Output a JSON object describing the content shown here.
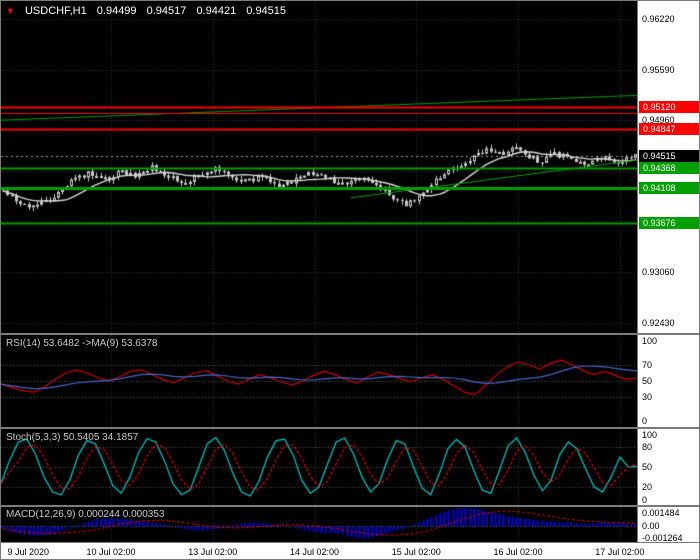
{
  "header": {
    "marker": "▼",
    "symbol": "USDCHF,H1",
    "open": "0.94499",
    "high": "0.94517",
    "low": "0.94421",
    "close": "0.94515"
  },
  "colors": {
    "background": "#000000",
    "grid": "#333333",
    "candle": "#C8C8C8",
    "ma": "#D8D8D8",
    "resistance_red": "#FF0000",
    "support_green": "#00A000",
    "current_tag_bg": "#000000",
    "rsi_line": "#CC0000",
    "rsi_ma": "#4466CC",
    "stoch_main": "#00CCCC",
    "stoch_signal": "#E00000",
    "macd_hist": "#0000EE",
    "macd_signal": "#E00000",
    "axis_bg": "#FFFFFF",
    "axis_text": "#000000",
    "separator": "#7A7A7A"
  },
  "chart_data": [
    {
      "type": "candlestick",
      "name": "USDCHF H1 price",
      "y_axis": {
        "min": 0.923,
        "max": 0.9645,
        "labels": [
          "0.96220",
          "0.95590",
          "0.94960",
          "0.94330",
          "0.93700",
          "0.93060",
          "0.92430"
        ],
        "label_values": [
          0.9622,
          0.9559,
          0.9496,
          0.9433,
          0.937,
          0.9306,
          0.9243
        ]
      },
      "candle_count": 150,
      "ma_period": 13,
      "price_path": [
        [
          0,
          0.9405
        ],
        [
          0.02,
          0.9396
        ],
        [
          0.045,
          0.9388
        ],
        [
          0.07,
          0.9395
        ],
        [
          0.09,
          0.9406
        ],
        [
          0.11,
          0.9422
        ],
        [
          0.135,
          0.943
        ],
        [
          0.16,
          0.9421
        ],
        [
          0.185,
          0.9431
        ],
        [
          0.21,
          0.9425
        ],
        [
          0.235,
          0.9437
        ],
        [
          0.26,
          0.9427
        ],
        [
          0.285,
          0.9417
        ],
        [
          0.31,
          0.9427
        ],
        [
          0.335,
          0.9435
        ],
        [
          0.36,
          0.9425
        ],
        [
          0.385,
          0.9419
        ],
        [
          0.41,
          0.9427
        ],
        [
          0.435,
          0.9414
        ],
        [
          0.46,
          0.9421
        ],
        [
          0.485,
          0.9431
        ],
        [
          0.51,
          0.9425
        ],
        [
          0.535,
          0.9417
        ],
        [
          0.56,
          0.9423
        ],
        [
          0.585,
          0.9419
        ],
        [
          0.61,
          0.9405
        ],
        [
          0.635,
          0.939
        ],
        [
          0.655,
          0.9397
        ],
        [
          0.675,
          0.9413
        ],
        [
          0.695,
          0.9427
        ],
        [
          0.72,
          0.9439
        ],
        [
          0.745,
          0.9451
        ],
        [
          0.77,
          0.946
        ],
        [
          0.79,
          0.9454
        ],
        [
          0.81,
          0.9463
        ],
        [
          0.83,
          0.9451
        ],
        [
          0.85,
          0.9445
        ],
        [
          0.87,
          0.9454
        ],
        [
          0.895,
          0.9449
        ],
        [
          0.92,
          0.9443
        ],
        [
          0.95,
          0.9448
        ],
        [
          0.975,
          0.9445
        ],
        [
          1,
          0.94515
        ]
      ],
      "levels": [
        {
          "price": 0.9512,
          "label": "0.95120",
          "color": "#FF0000",
          "width": 2
        },
        {
          "price": 0.9505,
          "label": "",
          "color": "#FF0000",
          "width": 1
        },
        {
          "price": 0.94847,
          "label": "0.94847",
          "color": "#FF0000",
          "width": 2
        },
        {
          "price": 0.94368,
          "label": "0.94368",
          "color": "#00A000",
          "width": 2
        },
        {
          "price": 0.94108,
          "label": "0.94108",
          "color": "#00A000",
          "width": 3
        },
        {
          "price": 0.93676,
          "label": "0.93676",
          "color": "#00A000",
          "width": 2
        }
      ],
      "current_price": {
        "price": 0.94515,
        "label": "0.94515"
      },
      "trendlines": [
        {
          "t1": 0,
          "p1": 0.9496,
          "t2": 1,
          "p2": 0.9527,
          "color": "#00A000",
          "width": 1
        },
        {
          "t1": 0.55,
          "p1": 0.9399,
          "t2": 1,
          "p2": 0.9446,
          "color": "#00A000",
          "width": 1
        }
      ]
    },
    {
      "type": "line",
      "name": "RSI(14)",
      "label": "RSI(14) 53.6482  ->MA(9) 53.6378",
      "value_main": 53.6482,
      "value_signal": 53.6378,
      "y_axis": {
        "min": 0,
        "max": 100,
        "labels": [
          "100",
          "70",
          "50",
          "30",
          "0"
        ],
        "label_values": [
          100,
          70,
          50,
          30,
          0
        ]
      },
      "level_lines": [
        70,
        50,
        30
      ],
      "signal_period": 9,
      "values": [
        46,
        42,
        38,
        36,
        42,
        52,
        60,
        64,
        60,
        54,
        50,
        55,
        62,
        64,
        58,
        52,
        48,
        54,
        60,
        63,
        57,
        50,
        46,
        52,
        58,
        54,
        49,
        45,
        50,
        57,
        62,
        58,
        52,
        47,
        55,
        61,
        58,
        53,
        49,
        54,
        58,
        52,
        44,
        36,
        33,
        45,
        58,
        68,
        74,
        70,
        65,
        72,
        76,
        70,
        63,
        58,
        62,
        57,
        52,
        54
      ]
    },
    {
      "type": "line",
      "name": "Stochastic(5,3,3)",
      "label": "Stoch(5,3,3) 50.5405 34.1857",
      "value_main": 50.5405,
      "value_signal": 34.1857,
      "y_axis": {
        "min": 0,
        "max": 100,
        "labels": [
          "100",
          "80",
          "50",
          "20",
          "0"
        ],
        "label_values": [
          100,
          80,
          50,
          20,
          0
        ]
      },
      "level_lines": [
        80,
        50,
        20
      ],
      "signal_period": 3,
      "values": [
        25,
        60,
        88,
        92,
        70,
        35,
        12,
        8,
        30,
        68,
        90,
        85,
        55,
        22,
        10,
        35,
        72,
        93,
        88,
        60,
        25,
        8,
        15,
        50,
        85,
        95,
        75,
        40,
        12,
        6,
        28,
        65,
        90,
        92,
        68,
        30,
        10,
        20,
        55,
        88,
        94,
        70,
        35,
        12,
        25,
        62,
        90,
        85,
        50,
        18,
        8,
        40,
        78,
        92,
        80,
        45,
        15,
        10,
        45,
        82,
        94,
        72,
        38,
        14,
        30,
        68,
        88,
        78,
        48,
        20,
        12,
        35,
        65,
        50,
        51
      ]
    },
    {
      "type": "bar",
      "name": "MACD(12,26,9)",
      "label": "MACD(12,26,9) 0.000244 0.000353",
      "value_main": 0.000244,
      "value_signal": 0.000353,
      "y_axis": {
        "min": -0.001264,
        "max": 0.001484,
        "labels": [
          "0.001484",
          "0.00",
          "-0.001264"
        ],
        "label_values": [
          0.001484,
          0,
          -0.001264
        ]
      },
      "signal_period": 9,
      "values": [
        -0.0002,
        -0.0004,
        -0.0006,
        -0.0007,
        -0.0007,
        -0.0006,
        -0.0004,
        -0.0002,
        0.0001,
        0.0003,
        0.0005,
        0.0006,
        0.0006,
        0.0006,
        0.0005,
        0.0004,
        0.0003,
        0.0002,
        0.0001,
        -0.0001,
        -0.0002,
        -0.0003,
        -0.0003,
        -0.0002,
        -0.0001,
        0.0001,
        0.0002,
        0.0003,
        0.0003,
        0.0002,
        0.0001,
        0,
        -0.0001,
        -0.0003,
        -0.0004,
        -0.0005,
        -0.0005,
        -0.0006,
        -0.0008,
        -0.0009,
        -0.0009,
        -0.0007,
        -0.0005,
        -0.0003,
        -0.0001,
        0.0002,
        0.0005,
        0.0008,
        0.0011,
        0.0013,
        0.0014,
        0.0014,
        0.0013,
        0.0011,
        0.001,
        0.0008,
        0.0007,
        0.0006,
        0.0005,
        0.0004,
        0.0004,
        0.0003,
        0.0003,
        0.0002,
        0.0002,
        0.0003,
        0.0003,
        0.0003,
        0.0002,
        0.0002
      ]
    }
  ],
  "time_axis": {
    "labels": [
      {
        "text": "9 Jul 2020",
        "f": 0.004,
        "align": "left"
      },
      {
        "text": "10 Jul 02:00",
        "f": 0.173
      },
      {
        "text": "13 Jul 02:00",
        "f": 0.333
      },
      {
        "text": "14 Jul 02:00",
        "f": 0.493
      },
      {
        "text": "15 Jul 02:00",
        "f": 0.653
      },
      {
        "text": "16 Jul 02:00",
        "f": 0.813
      },
      {
        "text": "17 Jul 02:00",
        "f": 0.973
      }
    ]
  }
}
